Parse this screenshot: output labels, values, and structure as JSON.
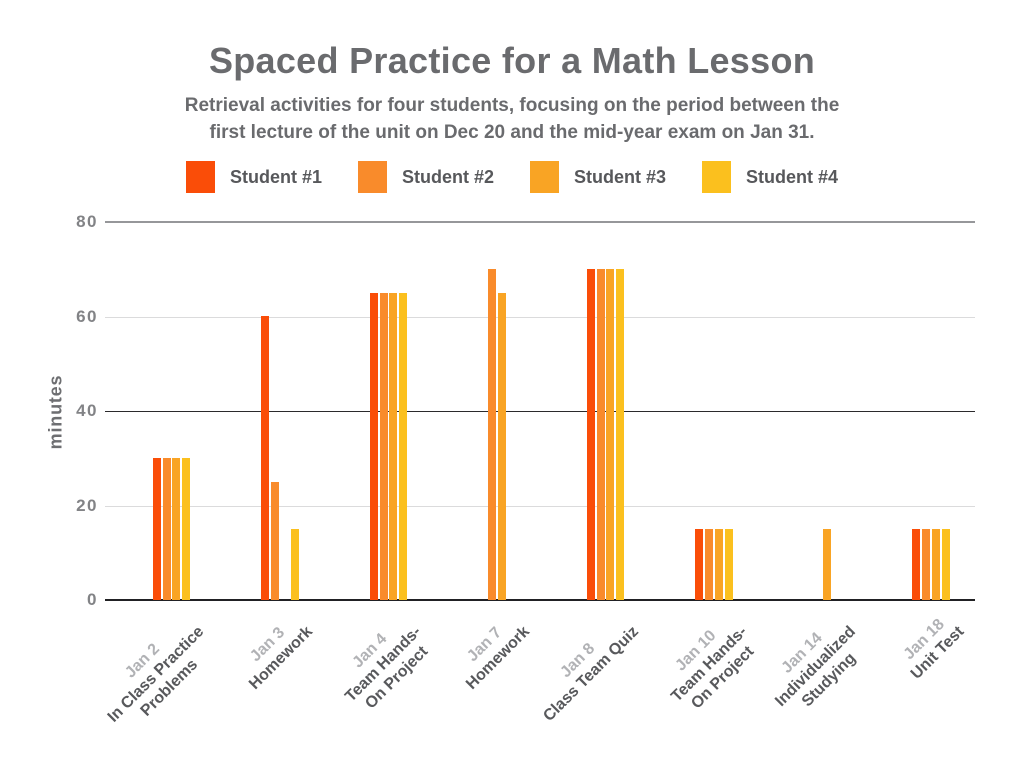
{
  "header": {
    "title": "Spaced Practice for a Math Lesson",
    "subtitle_lines": [
      "Retrieval activities for four students, focusing on the period between the",
      "first lecture of the unit on Dec 20 and the mid-year exam on Jan 31."
    ]
  },
  "chart_data": {
    "type": "bar",
    "title": "Spaced Practice for a Math Lesson",
    "xlabel": "",
    "ylabel": "minutes",
    "ylim": [
      0,
      80
    ],
    "y_ticks": [
      0,
      20,
      40,
      60,
      80
    ],
    "grid": "horizontal",
    "legend_position": "top",
    "categories": [
      {
        "date": "Jan 2",
        "activity_lines": [
          "In Class Practice",
          "Problems"
        ]
      },
      {
        "date": "Jan 3",
        "activity_lines": [
          "Homework"
        ]
      },
      {
        "date": "Jan 4",
        "activity_lines": [
          "Team Hands-",
          "On Project"
        ]
      },
      {
        "date": "Jan 7",
        "activity_lines": [
          "Homework"
        ]
      },
      {
        "date": "Jan 8",
        "activity_lines": [
          "Class Team Quiz"
        ]
      },
      {
        "date": "Jan 10",
        "activity_lines": [
          "Team Hands-",
          "On Project"
        ]
      },
      {
        "date": "Jan 14",
        "activity_lines": [
          "Individualized",
          "Studying"
        ]
      },
      {
        "date": "Jan 18",
        "activity_lines": [
          "Unit Test"
        ]
      }
    ],
    "series": [
      {
        "name": "Student #1",
        "color": "#FA4D08",
        "values": [
          30,
          60,
          65,
          0,
          70,
          15,
          0,
          15
        ]
      },
      {
        "name": "Student #2",
        "color": "#F98B2B",
        "values": [
          30,
          25,
          65,
          70,
          70,
          15,
          0,
          15
        ]
      },
      {
        "name": "Student #3",
        "color": "#F9A424",
        "values": [
          30,
          0,
          65,
          65,
          70,
          15,
          15,
          15
        ]
      },
      {
        "name": "Student #4",
        "color": "#FBC01E",
        "values": [
          30,
          15,
          65,
          0,
          70,
          15,
          0,
          15
        ]
      }
    ]
  }
}
